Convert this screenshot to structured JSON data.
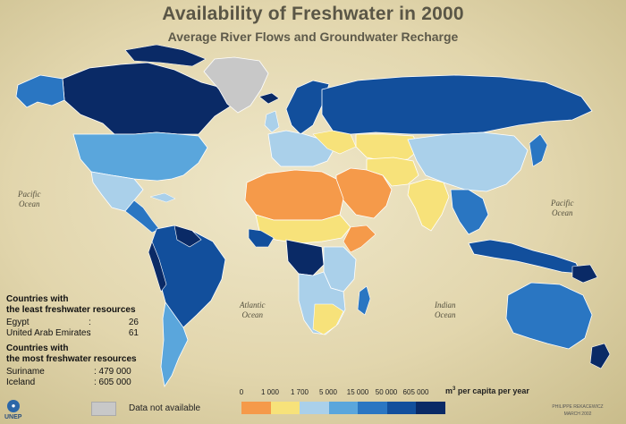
{
  "header": {
    "title": "Availability of Freshwater in 2000",
    "subtitle": "Average River Flows and Groundwater Recharge"
  },
  "oceans": {
    "pacific_west": [
      "Pacific",
      "Ocean"
    ],
    "pacific_east": [
      "Pacific",
      "Ocean"
    ],
    "atlantic": [
      "Atlantic",
      "Ocean"
    ],
    "indian": [
      "Indian",
      "Ocean"
    ]
  },
  "least_resources": {
    "heading": [
      "Countries with",
      "the least freshwater resources"
    ],
    "rows": [
      {
        "country": "Egypt",
        "value": "26"
      },
      {
        "country": "United Arab Emirates",
        "value": "61"
      }
    ]
  },
  "most_resources": {
    "heading": [
      "Countries with",
      "the most freshwater resources"
    ],
    "rows": [
      {
        "country": "Suriname",
        "value": ": 479 000"
      },
      {
        "country": "Iceland",
        "value": ": 605 000"
      }
    ]
  },
  "legend": {
    "breaks": [
      "0",
      "1 000",
      "1 700",
      "5 000",
      "15 000",
      "50 000",
      "605 000"
    ],
    "unit_prefix": "m",
    "unit_superscript": "3",
    "unit_suffix": " per capita per year",
    "colors": [
      "#f59a4a",
      "#f7e27a",
      "#aad0ea",
      "#5aa6dc",
      "#2a76c2",
      "#124f9c",
      "#0a2a66"
    ],
    "not_available_color": "#c8c8c8",
    "not_available_label": "Data not available"
  },
  "footer": {
    "logo_text": "UNEP",
    "credit_author": "PHILIPPE REKACEWICZ",
    "credit_date": "MARCH 2002"
  }
}
